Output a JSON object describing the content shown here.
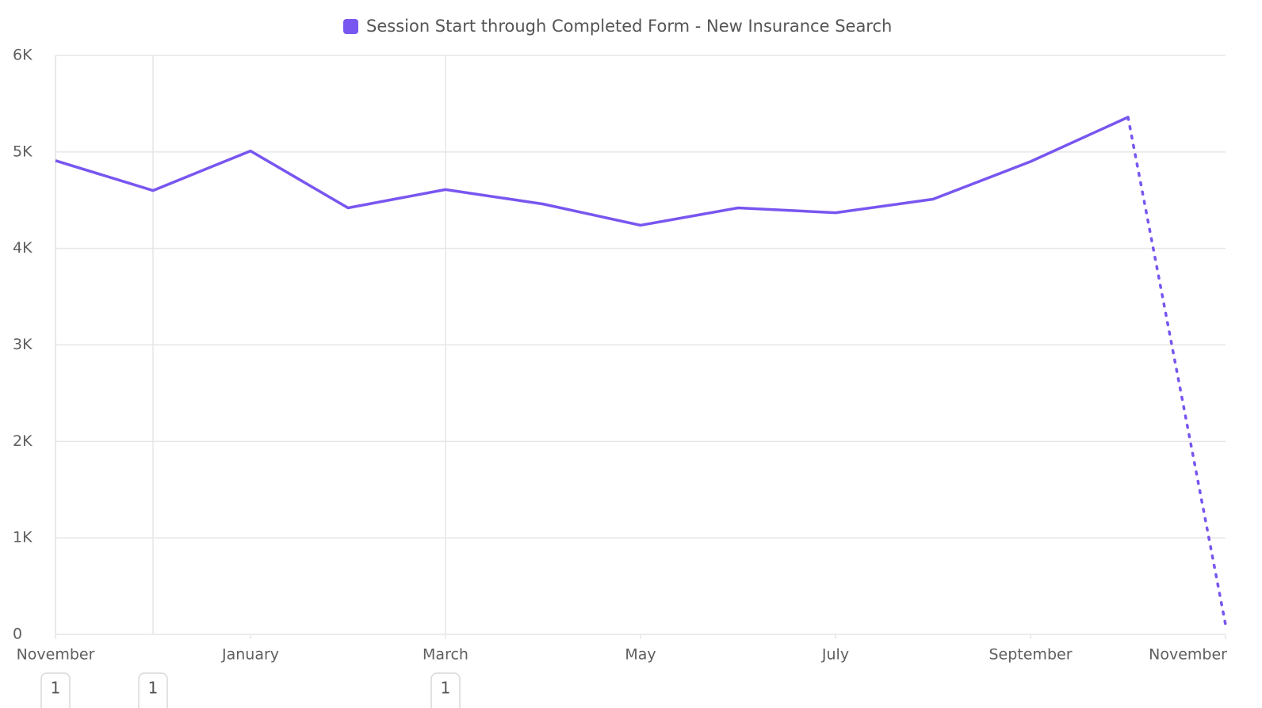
{
  "chart_data": {
    "type": "line",
    "categories": [
      "November",
      null,
      "January",
      null,
      "March",
      null,
      "May",
      null,
      "July",
      null,
      "September",
      null,
      "November"
    ],
    "series": [
      {
        "name": "Session Start through Completed Form - New Insurance Search",
        "color": "#7856f0",
        "values": [
          4910,
          4600,
          5010,
          4420,
          4610,
          4460,
          4240,
          4420,
          4370,
          4510,
          4900,
          5360,
          100
        ]
      }
    ],
    "dotted_last_segment": true,
    "ylim": [
      0,
      6000
    ],
    "yticks": [
      0,
      {
        "value": 1000,
        "label": "1K"
      },
      {
        "value": 2000,
        "label": "2K"
      },
      {
        "value": 3000,
        "label": "3K"
      },
      {
        "value": 4000,
        "label": "4K"
      },
      {
        "value": 5000,
        "label": "5K"
      },
      {
        "value": 6000,
        "label": "6K"
      }
    ],
    "grid": true,
    "legend": "top",
    "annotations": [
      {
        "category_index": 0,
        "label": "1"
      },
      {
        "category_index": 1,
        "label": "1"
      },
      {
        "category_index": 4,
        "label": "1"
      }
    ]
  }
}
